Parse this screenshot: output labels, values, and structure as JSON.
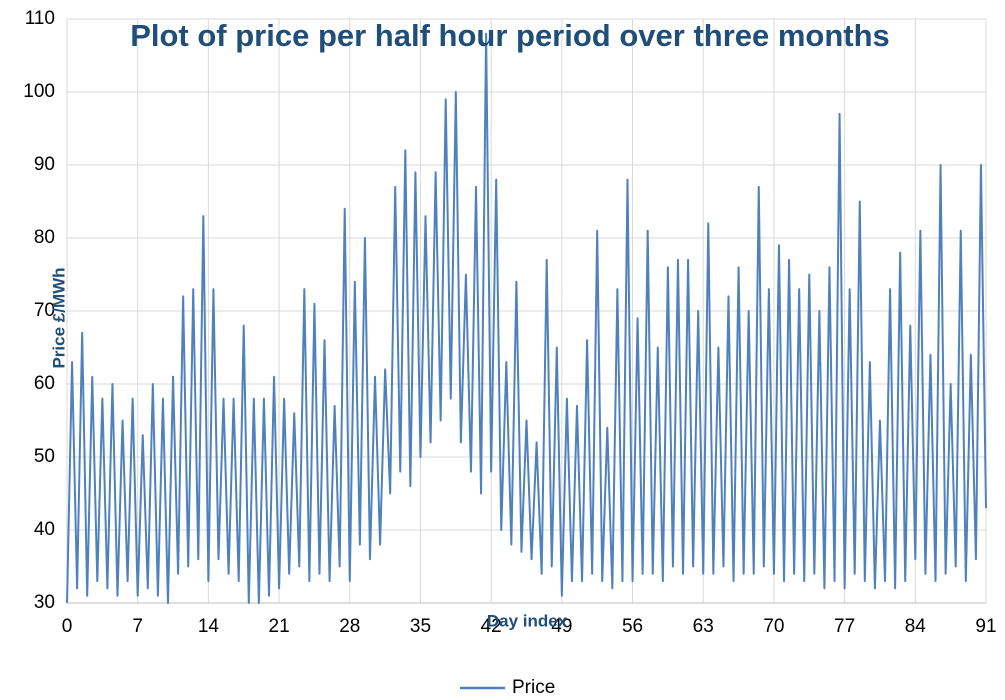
{
  "chart_data": {
    "type": "line",
    "title": "Plot of price per half hour period over three months",
    "x_label": "Day index",
    "y_label": "Price £/MWh",
    "x": [
      0,
      0.5,
      1,
      1.5,
      2,
      2.5,
      3,
      3.5,
      4,
      4.5,
      5,
      5.5,
      6,
      6.5,
      7,
      7.5,
      8,
      8.5,
      9,
      9.5,
      10,
      10.5,
      11,
      11.5,
      12,
      12.5,
      13,
      13.5,
      14,
      14.5,
      15,
      15.5,
      16,
      16.5,
      17,
      17.5,
      18,
      18.5,
      19,
      19.5,
      20,
      20.5,
      21,
      21.5,
      22,
      22.5,
      23,
      23.5,
      24,
      24.5,
      25,
      25.5,
      26,
      26.5,
      27,
      27.5,
      28,
      28.5,
      29,
      29.5,
      30,
      30.5,
      31,
      31.5,
      32,
      32.5,
      33,
      33.5,
      34,
      34.5,
      35,
      35.5,
      36,
      36.5,
      37,
      37.5,
      38,
      38.5,
      39,
      39.5,
      40,
      40.5,
      41,
      41.5,
      42,
      42.5,
      43,
      43.5,
      44,
      44.5,
      45,
      45.5,
      46,
      46.5,
      47,
      47.5,
      48,
      48.5,
      49,
      49.5,
      50,
      50.5,
      51,
      51.5,
      52,
      52.5,
      53,
      53.5,
      54,
      54.5,
      55,
      55.5,
      56,
      56.5,
      57,
      57.5,
      58,
      58.5,
      59,
      59.5,
      60,
      60.5,
      61,
      61.5,
      62,
      62.5,
      63,
      63.5,
      64,
      64.5,
      65,
      65.5,
      66,
      66.5,
      67,
      67.5,
      68,
      68.5,
      69,
      69.5,
      70,
      70.5,
      71,
      71.5,
      72,
      72.5,
      73,
      73.5,
      74,
      74.5,
      75,
      75.5,
      76,
      76.5,
      77,
      77.5,
      78,
      78.5,
      79,
      79.5,
      80,
      80.5,
      81,
      81.5,
      82,
      82.5,
      83,
      83.5,
      84,
      84.5,
      85,
      85.5,
      86,
      86.5,
      87,
      87.5,
      88,
      88.5,
      89,
      89.5,
      90,
      90.5,
      91
    ],
    "series": [
      {
        "name": "Price",
        "color": "#4f81bd",
        "values": [
          30,
          63,
          32,
          67,
          31,
          61,
          33,
          58,
          32,
          60,
          31,
          55,
          33,
          58,
          31,
          53,
          32,
          60,
          31,
          58,
          30,
          61,
          34,
          72,
          35,
          73,
          36,
          83,
          33,
          73,
          36,
          58,
          34,
          58,
          33,
          68,
          30,
          58,
          30,
          58,
          31,
          61,
          32,
          58,
          34,
          56,
          35,
          73,
          33,
          71,
          34,
          66,
          33,
          57,
          35,
          84,
          33,
          74,
          38,
          80,
          36,
          61,
          38,
          62,
          45,
          87,
          48,
          92,
          46,
          89,
          50,
          83,
          52,
          89,
          55,
          99,
          58,
          100,
          52,
          75,
          48,
          87,
          45,
          108,
          48,
          88,
          40,
          63,
          38,
          74,
          37,
          55,
          36,
          52,
          34,
          77,
          35,
          65,
          31,
          58,
          33,
          57,
          33,
          66,
          34,
          81,
          33,
          54,
          32,
          73,
          33,
          88,
          33,
          69,
          34,
          81,
          34,
          65,
          33,
          76,
          35,
          77,
          34,
          77,
          35,
          70,
          34,
          82,
          34,
          65,
          35,
          72,
          33,
          76,
          34,
          70,
          34,
          87,
          35,
          73,
          34,
          79,
          33,
          77,
          34,
          73,
          33,
          75,
          34,
          70,
          32,
          76,
          33,
          97,
          32,
          73,
          34,
          85,
          33,
          63,
          32,
          55,
          33,
          73,
          32,
          78,
          33,
          68,
          36,
          81,
          34,
          64,
          33,
          90,
          34,
          60,
          35,
          81,
          33,
          64,
          36,
          90,
          43
        ]
      }
    ],
    "xlim": [
      0,
      91
    ],
    "ylim": [
      30,
      110
    ],
    "xticks": [
      0,
      7,
      14,
      21,
      28,
      35,
      42,
      49,
      56,
      63,
      70,
      77,
      84,
      91
    ],
    "yticks": [
      30,
      40,
      50,
      60,
      70,
      80,
      90,
      100,
      110
    ],
    "grid": true,
    "legend": "bottom"
  }
}
